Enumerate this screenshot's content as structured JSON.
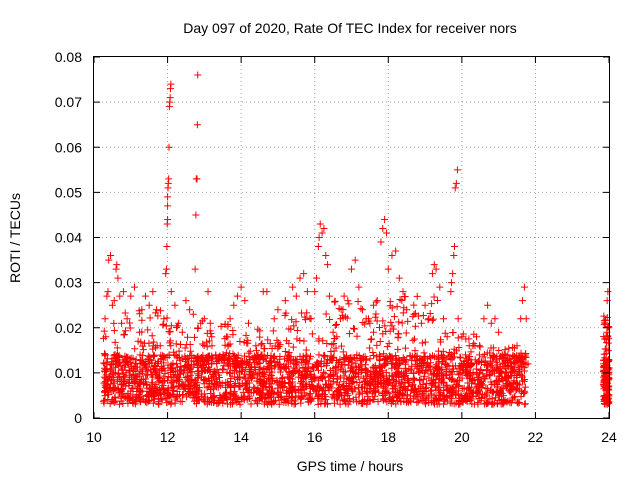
{
  "chart_data": {
    "type": "scatter",
    "title": "Day 097 of 2020, Rate Of TEC Index for receiver nors",
    "xlabel": "GPS time / hours",
    "ylabel": "ROTI / TECUs",
    "xlim": [
      10,
      24
    ],
    "ylim": [
      0,
      0.08
    ],
    "x_ticks": [
      "10",
      "12",
      "14",
      "16",
      "18",
      "20",
      "22",
      "24"
    ],
    "y_ticks": [
      "0",
      "0.01",
      "0.02",
      "0.03",
      "0.04",
      "0.05",
      "0.06",
      "0.07",
      "0.08"
    ],
    "grid": true,
    "marker": "+",
    "color": "#ff0000",
    "series": [
      {
        "points": [
          [
            10.3,
            0.012
          ],
          [
            10.3,
            0.022
          ],
          [
            10.32,
            0.018
          ],
          [
            10.35,
            0.027
          ],
          [
            10.38,
            0.028
          ],
          [
            10.4,
            0.035
          ],
          [
            10.45,
            0.036
          ],
          [
            10.5,
            0.025
          ],
          [
            10.55,
            0.026
          ],
          [
            10.6,
            0.033
          ],
          [
            10.62,
            0.034
          ],
          [
            10.65,
            0.031
          ],
          [
            10.7,
            0.027
          ],
          [
            10.75,
            0.021
          ],
          [
            10.8,
            0.028
          ],
          [
            10.9,
            0.022
          ],
          [
            11.0,
            0.027
          ],
          [
            11.1,
            0.029
          ],
          [
            11.2,
            0.017
          ],
          [
            11.3,
            0.024
          ],
          [
            11.4,
            0.027
          ],
          [
            11.5,
            0.025
          ],
          [
            11.6,
            0.028
          ],
          [
            11.7,
            0.024
          ],
          [
            11.8,
            0.016
          ],
          [
            11.9,
            0.022
          ],
          [
            11.95,
            0.032
          ],
          [
            11.97,
            0.033
          ],
          [
            11.98,
            0.038
          ],
          [
            11.99,
            0.043
          ],
          [
            12.0,
            0.044
          ],
          [
            12.0,
            0.047
          ],
          [
            12.0,
            0.049
          ],
          [
            12.01,
            0.051
          ],
          [
            12.02,
            0.052
          ],
          [
            12.03,
            0.053
          ],
          [
            12.04,
            0.06
          ],
          [
            12.05,
            0.069
          ],
          [
            12.06,
            0.07
          ],
          [
            12.07,
            0.071
          ],
          [
            12.08,
            0.073
          ],
          [
            12.09,
            0.074
          ],
          [
            12.1,
            0.028
          ],
          [
            12.2,
            0.025
          ],
          [
            12.3,
            0.021
          ],
          [
            12.4,
            0.019
          ],
          [
            12.5,
            0.026
          ],
          [
            12.6,
            0.024
          ],
          [
            12.7,
            0.023
          ],
          [
            12.75,
            0.033
          ],
          [
            12.77,
            0.045
          ],
          [
            12.78,
            0.053
          ],
          [
            12.8,
            0.053
          ],
          [
            12.81,
            0.065
          ],
          [
            12.82,
            0.076
          ],
          [
            12.9,
            0.021
          ],
          [
            13.0,
            0.022
          ],
          [
            13.1,
            0.028
          ],
          [
            13.2,
            0.018
          ],
          [
            13.4,
            0.013
          ],
          [
            13.6,
            0.018
          ],
          [
            13.7,
            0.022
          ],
          [
            13.8,
            0.025
          ],
          [
            13.9,
            0.027
          ],
          [
            14.0,
            0.029
          ],
          [
            14.1,
            0.026
          ],
          [
            14.2,
            0.021
          ],
          [
            14.4,
            0.016
          ],
          [
            14.6,
            0.028
          ],
          [
            14.7,
            0.028
          ],
          [
            14.9,
            0.022
          ],
          [
            15.0,
            0.024
          ],
          [
            15.2,
            0.026
          ],
          [
            15.4,
            0.029
          ],
          [
            15.5,
            0.027
          ],
          [
            15.6,
            0.031
          ],
          [
            15.7,
            0.032
          ],
          [
            15.8,
            0.028
          ],
          [
            15.9,
            0.022
          ],
          [
            16.0,
            0.028
          ],
          [
            16.05,
            0.031
          ],
          [
            16.1,
            0.038
          ],
          [
            16.12,
            0.04
          ],
          [
            16.15,
            0.043
          ],
          [
            16.2,
            0.041
          ],
          [
            16.25,
            0.042
          ],
          [
            16.3,
            0.036
          ],
          [
            16.35,
            0.034
          ],
          [
            16.4,
            0.027
          ],
          [
            16.5,
            0.019
          ],
          [
            16.6,
            0.018
          ],
          [
            16.7,
            0.022
          ],
          [
            16.8,
            0.027
          ],
          [
            16.9,
            0.026
          ],
          [
            17.0,
            0.033
          ],
          [
            17.1,
            0.035
          ],
          [
            17.2,
            0.029
          ],
          [
            17.3,
            0.024
          ],
          [
            17.4,
            0.022
          ],
          [
            17.5,
            0.021
          ],
          [
            17.6,
            0.025
          ],
          [
            17.7,
            0.026
          ],
          [
            17.8,
            0.039
          ],
          [
            17.85,
            0.042
          ],
          [
            17.9,
            0.044
          ],
          [
            17.95,
            0.041
          ],
          [
            18.0,
            0.033
          ],
          [
            18.1,
            0.036
          ],
          [
            18.2,
            0.037
          ],
          [
            18.3,
            0.031
          ],
          [
            18.4,
            0.028
          ],
          [
            18.5,
            0.024
          ],
          [
            18.7,
            0.023
          ],
          [
            18.9,
            0.021
          ],
          [
            19.0,
            0.025
          ],
          [
            19.1,
            0.022
          ],
          [
            19.2,
            0.032
          ],
          [
            19.25,
            0.034
          ],
          [
            19.3,
            0.033
          ],
          [
            19.4,
            0.029
          ],
          [
            19.5,
            0.022
          ],
          [
            19.6,
            0.018
          ],
          [
            19.7,
            0.028
          ],
          [
            19.72,
            0.03
          ],
          [
            19.75,
            0.032
          ],
          [
            19.78,
            0.036
          ],
          [
            19.8,
            0.038
          ],
          [
            19.82,
            0.051
          ],
          [
            19.85,
            0.052
          ],
          [
            19.88,
            0.055
          ],
          [
            19.9,
            0.022
          ],
          [
            20.0,
            0.018
          ],
          [
            20.1,
            0.014
          ],
          [
            20.2,
            0.016
          ],
          [
            20.3,
            0.016
          ],
          [
            20.4,
            0.018
          ],
          [
            20.6,
            0.022
          ],
          [
            20.7,
            0.025
          ],
          [
            20.8,
            0.021
          ],
          [
            20.9,
            0.022
          ],
          [
            21.0,
            0.019
          ],
          [
            21.1,
            0.014
          ],
          [
            21.3,
            0.013
          ],
          [
            21.5,
            0.016
          ],
          [
            21.6,
            0.022
          ],
          [
            21.65,
            0.026
          ],
          [
            21.7,
            0.029
          ],
          [
            21.75,
            0.022
          ],
          [
            21.8,
            0.012
          ],
          [
            23.85,
            0.012
          ],
          [
            23.9,
            0.021
          ],
          [
            23.92,
            0.018
          ],
          [
            23.95,
            0.026
          ],
          [
            23.97,
            0.028
          ],
          [
            24.0,
            0.02
          ]
        ]
      }
    ]
  }
}
